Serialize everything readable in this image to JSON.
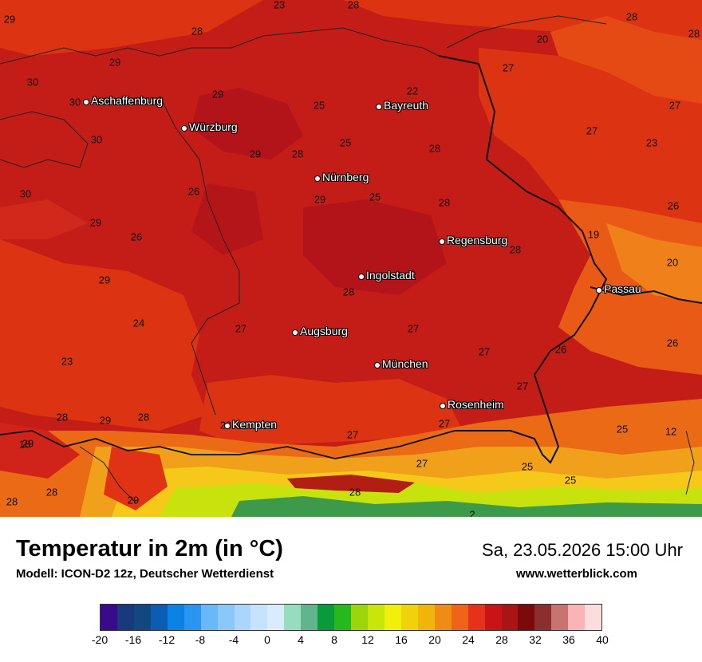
{
  "map": {
    "cities": [
      {
        "name": "Aschaffenburg"
      },
      {
        "name": "Würzburg"
      },
      {
        "name": "Bayreuth"
      },
      {
        "name": "Nürnberg"
      },
      {
        "name": "Regensburg"
      },
      {
        "name": "Ingolstadt"
      },
      {
        "name": "Passau"
      },
      {
        "name": "Augsburg"
      },
      {
        "name": "München"
      },
      {
        "name": "Rosenheim"
      },
      {
        "name": "Kempten"
      }
    ],
    "temperature_labels": [
      "29",
      "23",
      "28",
      "28",
      "28",
      "20",
      "27",
      "30",
      "29",
      "29",
      "25",
      "22",
      "30",
      "30",
      "27",
      "25",
      "28",
      "29",
      "28",
      "27",
      "30",
      "29",
      "29",
      "23",
      "26",
      "29",
      "25",
      "28",
      "26",
      "19",
      "26",
      "28",
      "20",
      "29",
      "28",
      "24",
      "27",
      "27",
      "23",
      "27",
      "26",
      "26",
      "28",
      "28",
      "27",
      "18",
      "29",
      "28",
      "27",
      "27",
      "25",
      "12",
      "29",
      "27",
      "25",
      "28",
      "28",
      "25",
      "28",
      "28",
      "2"
    ],
    "colors": {
      "dominant_red": "#b4141e",
      "orange_red": "#dc3412",
      "orange": "#f0741a",
      "alpine_yellow": "#f5c81a",
      "alpine_green": "#3c9a4a"
    }
  },
  "footer": {
    "title": "Temperatur in 2m (in °C)",
    "model": "Modell: ICON-D2 12z, Deutscher Wetterdienst",
    "valid_time": "Sa, 23.05.2026 15:00 Uhr",
    "site": "www.wetterblick.com"
  },
  "legend": {
    "colors": [
      "#3a0a8c",
      "#183a7c",
      "#124880",
      "#0a5cb4",
      "#0a82e6",
      "#2896f0",
      "#6ab8fa",
      "#8ac8fa",
      "#aad6fc",
      "#c6e2fc",
      "#d8ecfc",
      "#96dcbe",
      "#62b48c",
      "#0a9a3c",
      "#26b81c",
      "#9ad60a",
      "#c8e60a",
      "#f0f00a",
      "#f0d20a",
      "#f0b40a",
      "#f08c14",
      "#f0641a",
      "#e6321a",
      "#c81414",
      "#aa1414",
      "#7c0a0a",
      "#8c2e2e",
      "#c87272",
      "#fab4b4",
      "#fcdcdc"
    ],
    "tick_labels": [
      "-20",
      "-16",
      "-12",
      "-8",
      "-4",
      "0",
      "4",
      "8",
      "12",
      "16",
      "20",
      "24",
      "28",
      "32",
      "36",
      "40"
    ]
  }
}
